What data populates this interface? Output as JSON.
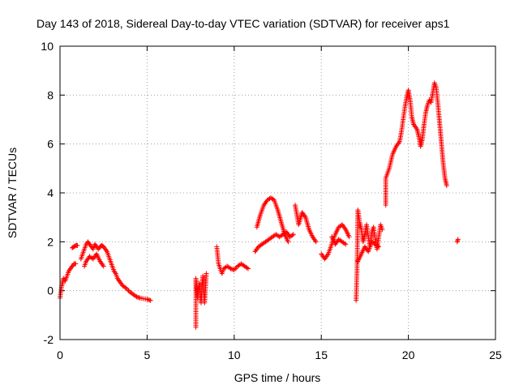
{
  "chart_data": {
    "type": "scatter",
    "title": "Day 143 of 2018, Sidereal Day-to-day VTEC variation (SDTVAR) for receiver aps1",
    "xlabel": "GPS time / hours",
    "ylabel": "SDTVAR / TECUs",
    "xlim": [
      0,
      25
    ],
    "ylim": [
      -2,
      10
    ],
    "xticks": [
      "0",
      "5",
      "10",
      "15",
      "20",
      "25"
    ],
    "yticks": [
      "-2",
      "0",
      "2",
      "4",
      "6",
      "8",
      "10"
    ],
    "grid": true,
    "marker": "plus",
    "color": "#ff0000",
    "series": [
      {
        "name": "SDTVAR",
        "segments": [
          [
            [
              0.0,
              -0.3
            ],
            [
              0.1,
              0.2
            ],
            [
              0.2,
              0.5
            ],
            [
              0.3,
              0.4
            ],
            [
              0.4,
              0.6
            ],
            [
              0.5,
              0.8
            ],
            [
              0.6,
              0.9
            ],
            [
              0.7,
              1.0
            ],
            [
              0.8,
              1.1
            ],
            [
              0.9,
              1.1
            ]
          ],
          [
            [
              0.7,
              1.75
            ],
            [
              0.8,
              1.8
            ],
            [
              0.9,
              1.85
            ],
            [
              1.0,
              1.85
            ]
          ],
          [
            [
              1.2,
              1.3
            ],
            [
              1.3,
              1.5
            ],
            [
              1.4,
              1.7
            ],
            [
              1.5,
              1.9
            ],
            [
              1.6,
              2.0
            ],
            [
              1.7,
              1.9
            ],
            [
              1.8,
              1.8
            ],
            [
              1.9,
              1.7
            ],
            [
              2.0,
              1.9
            ],
            [
              2.1,
              1.8
            ],
            [
              2.2,
              1.7
            ],
            [
              2.3,
              1.8
            ],
            [
              2.4,
              1.85
            ],
            [
              2.5,
              1.8
            ],
            [
              2.6,
              1.7
            ],
            [
              2.7,
              1.6
            ],
            [
              2.8,
              1.4
            ],
            [
              2.9,
              1.2
            ],
            [
              3.0,
              1.0
            ],
            [
              3.1,
              0.8
            ],
            [
              3.2,
              0.7
            ],
            [
              3.3,
              0.5
            ],
            [
              3.4,
              0.4
            ],
            [
              3.5,
              0.3
            ],
            [
              3.6,
              0.2
            ],
            [
              3.8,
              0.1
            ],
            [
              4.0,
              -0.05
            ],
            [
              4.2,
              -0.15
            ],
            [
              4.4,
              -0.25
            ],
            [
              4.6,
              -0.3
            ],
            [
              4.8,
              -0.33
            ],
            [
              5.0,
              -0.35
            ],
            [
              5.2,
              -0.4
            ]
          ],
          [
            [
              1.4,
              1.0
            ],
            [
              1.5,
              1.2
            ],
            [
              1.7,
              1.4
            ],
            [
              1.9,
              1.3
            ],
            [
              2.1,
              1.5
            ],
            [
              2.3,
              1.2
            ],
            [
              2.5,
              1.0
            ]
          ],
          [
            [
              7.8,
              -1.5
            ],
            [
              7.8,
              0.5
            ],
            [
              7.9,
              -0.3
            ],
            [
              8.0,
              0.3
            ],
            [
              8.1,
              -0.5
            ],
            [
              8.2,
              0.6
            ],
            [
              8.3,
              -0.5
            ],
            [
              8.4,
              0.7
            ]
          ],
          [
            [
              9.0,
              1.8
            ],
            [
              9.1,
              1.1
            ],
            [
              9.2,
              0.9
            ],
            [
              9.3,
              0.7
            ],
            [
              9.4,
              0.9
            ],
            [
              9.6,
              1.0
            ],
            [
              9.8,
              0.9
            ],
            [
              10.0,
              0.85
            ],
            [
              10.2,
              1.0
            ],
            [
              10.4,
              1.1
            ],
            [
              10.6,
              1.0
            ],
            [
              10.8,
              0.9
            ]
          ],
          [
            [
              11.2,
              1.6
            ],
            [
              11.4,
              1.8
            ],
            [
              11.6,
              1.9
            ],
            [
              11.8,
              2.0
            ],
            [
              12.0,
              2.1
            ],
            [
              12.2,
              2.2
            ],
            [
              12.4,
              2.3
            ],
            [
              12.6,
              2.2
            ],
            [
              12.8,
              2.3
            ],
            [
              13.0,
              2.4
            ],
            [
              13.2,
              2.2
            ],
            [
              13.4,
              2.3
            ]
          ],
          [
            [
              11.3,
              2.6
            ],
            [
              11.5,
              3.1
            ],
            [
              11.7,
              3.5
            ],
            [
              11.9,
              3.7
            ],
            [
              12.1,
              3.8
            ],
            [
              12.3,
              3.7
            ],
            [
              12.5,
              3.3
            ],
            [
              12.7,
              2.8
            ],
            [
              12.9,
              2.3
            ],
            [
              13.1,
              2.0
            ]
          ],
          [
            [
              13.5,
              3.5
            ],
            [
              13.7,
              2.7
            ],
            [
              13.9,
              3.2
            ],
            [
              14.1,
              3.0
            ],
            [
              14.3,
              2.5
            ],
            [
              14.5,
              2.2
            ],
            [
              14.7,
              2.0
            ]
          ],
          [
            [
              15.0,
              1.5
            ],
            [
              15.2,
              1.3
            ],
            [
              15.4,
              1.5
            ],
            [
              15.6,
              1.9
            ],
            [
              15.8,
              2.3
            ],
            [
              16.0,
              2.6
            ],
            [
              16.2,
              2.7
            ],
            [
              16.4,
              2.5
            ],
            [
              16.6,
              2.2
            ]
          ],
          [
            [
              15.6,
              2.2
            ],
            [
              15.8,
              1.9
            ],
            [
              16.0,
              2.1
            ],
            [
              16.2,
              2.0
            ],
            [
              16.4,
              1.9
            ]
          ],
          [
            [
              17.0,
              -0.4
            ],
            [
              17.05,
              0.8
            ],
            [
              17.1,
              3.3
            ],
            [
              17.2,
              2.8
            ],
            [
              17.3,
              2.5
            ],
            [
              17.4,
              2.0
            ],
            [
              17.5,
              2.3
            ],
            [
              17.6,
              2.7
            ],
            [
              17.7,
              2.2
            ],
            [
              17.8,
              1.8
            ],
            [
              17.9,
              2.4
            ],
            [
              18.0,
              2.6
            ],
            [
              18.1,
              2.1
            ],
            [
              18.2,
              1.7
            ],
            [
              18.3,
              2.2
            ],
            [
              18.4,
              2.7
            ],
            [
              18.5,
              2.5
            ]
          ],
          [
            [
              17.1,
              1.2
            ],
            [
              17.3,
              1.5
            ],
            [
              17.5,
              1.8
            ],
            [
              17.7,
              1.6
            ],
            [
              17.9,
              2.0
            ],
            [
              18.1,
              1.9
            ],
            [
              18.3,
              1.8
            ]
          ],
          [
            [
              18.7,
              3.5
            ],
            [
              18.7,
              4.6
            ],
            [
              18.9,
              5.0
            ],
            [
              19.1,
              5.6
            ],
            [
              19.3,
              5.9
            ],
            [
              19.5,
              6.1
            ],
            [
              19.6,
              6.5
            ],
            [
              19.7,
              7.0
            ],
            [
              19.8,
              7.5
            ],
            [
              19.9,
              7.9
            ],
            [
              20.0,
              8.2
            ],
            [
              20.1,
              7.8
            ],
            [
              20.2,
              7.1
            ],
            [
              20.3,
              6.8
            ],
            [
              20.5,
              6.6
            ],
            [
              20.6,
              6.3
            ],
            [
              20.7,
              5.9
            ],
            [
              20.8,
              6.2
            ],
            [
              20.9,
              6.8
            ],
            [
              21.0,
              7.3
            ],
            [
              21.1,
              7.6
            ],
            [
              21.2,
              7.8
            ],
            [
              21.3,
              7.7
            ],
            [
              21.4,
              8.1
            ],
            [
              21.5,
              8.5
            ],
            [
              21.6,
              8.3
            ],
            [
              21.7,
              7.6
            ],
            [
              21.8,
              6.8
            ],
            [
              21.9,
              6.0
            ],
            [
              22.0,
              5.2
            ],
            [
              22.1,
              4.6
            ],
            [
              22.2,
              4.3
            ]
          ],
          [
            [
              22.8,
              2.0
            ],
            [
              22.85,
              2.1
            ]
          ]
        ]
      }
    ]
  }
}
